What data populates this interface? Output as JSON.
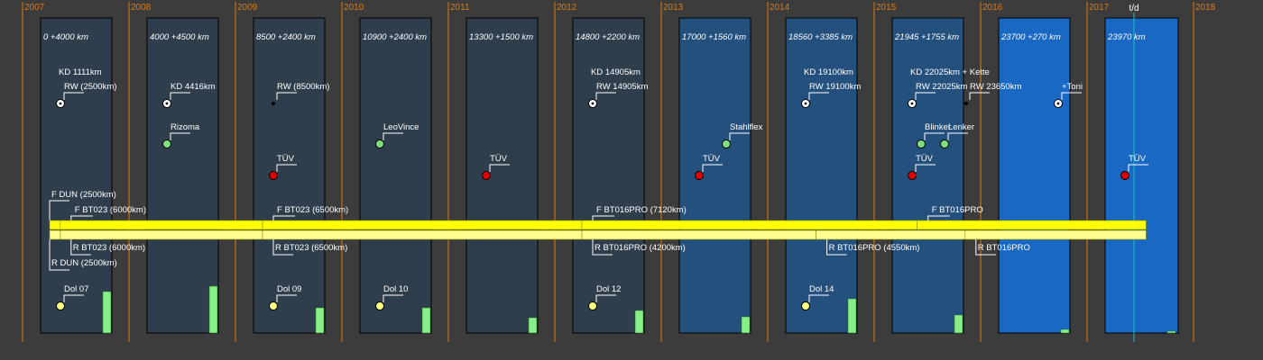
{
  "colors": {
    "background": "#3c3c3c",
    "year_line": "#e07a10",
    "year_text": "#e07a10",
    "panel_dark": "#2f3e4c",
    "panel_mid": "#24507e",
    "panel_bright": "#1868c4",
    "panel_border": "#000000",
    "tire_front": "#ffff00",
    "tire_rear": "#ffff90",
    "tire_border": "#8a8a00",
    "green_bar": "#88ee88",
    "dot_white": "#ffffff",
    "dot_green": "#80e080",
    "dot_red": "#e00000",
    "dot_yellow": "#ffff80",
    "today_line": "#20c0c0",
    "label_text": "#ffffff"
  },
  "years": [
    "2007",
    "2008",
    "2009",
    "2010",
    "2011",
    "2012",
    "2013",
    "2014",
    "2015",
    "2016",
    "2017",
    "2018"
  ],
  "today_label": "t/d",
  "panels": [
    {
      "label": "0 +4000 km",
      "shade": "dark",
      "bar_level": 0.38
    },
    {
      "label": "4000 +4500 km",
      "shade": "dark",
      "bar_level": 0.43
    },
    {
      "label": "8500 +2400 km",
      "shade": "dark",
      "bar_level": 0.23
    },
    {
      "label": "10900 +2400 km",
      "shade": "dark",
      "bar_level": 0.23
    },
    {
      "label": "13300 +1500 km",
      "shade": "dark",
      "bar_level": 0.14
    },
    {
      "label": "14800 +2200 km",
      "shade": "dark",
      "bar_level": 0.21
    },
    {
      "label": "17000 +1560 km",
      "shade": "mid",
      "bar_level": 0.15
    },
    {
      "label": "18560 +3385 km",
      "shade": "mid",
      "bar_level": 0.32
    },
    {
      "label": "21945 +1755 km",
      "shade": "mid",
      "bar_level": 0.17
    },
    {
      "label": "23700 +270 km",
      "shade": "bright",
      "bar_level": 0.03
    },
    {
      "label": "23970 km",
      "shade": "bright",
      "bar_level": 0.01
    }
  ],
  "events": [
    {
      "text": "KD 1111km",
      "col": 0,
      "row": "kd",
      "dot": "none"
    },
    {
      "text": "RW (2500km)",
      "col": 0,
      "row": "rw",
      "dot": "white"
    },
    {
      "text": "KD 4416km",
      "col": 1,
      "row": "rw",
      "dot": "white"
    },
    {
      "text": "RW (8500km)",
      "col": 2,
      "row": "rw",
      "dot": "small"
    },
    {
      "text": "KD 14905km",
      "col": 5,
      "row": "kd",
      "dot": "none"
    },
    {
      "text": "RW 14905km",
      "col": 5,
      "row": "rw",
      "dot": "white"
    },
    {
      "text": "KD 19100km",
      "col": 7,
      "row": "kd",
      "dot": "none"
    },
    {
      "text": "RW 19100km",
      "col": 7,
      "row": "rw",
      "dot": "white"
    },
    {
      "text": "KD 22025km + Kette",
      "col": 8,
      "row": "kd",
      "dot": "none"
    },
    {
      "text": "RW 22025km",
      "col": 8,
      "row": "rw",
      "dot": "white"
    },
    {
      "text": "RW 23650km",
      "col": 8,
      "row": "rw",
      "dot": "small",
      "xoff": 60
    },
    {
      "text": "+Toni",
      "col": 9,
      "row": "rw",
      "dot": "white",
      "xoff": 44
    },
    {
      "text": "Rizoma",
      "col": 1,
      "row": "parts",
      "dot": "green"
    },
    {
      "text": "LeoVince",
      "col": 3,
      "row": "parts",
      "dot": "green"
    },
    {
      "text": "Stahlflex",
      "col": 6,
      "row": "parts",
      "dot": "green",
      "xoff": 30
    },
    {
      "text": "Blinker",
      "col": 8,
      "row": "parts",
      "dot": "green",
      "xoff": 10
    },
    {
      "text": "Lenker",
      "col": 8,
      "row": "parts",
      "dot": "green",
      "xoff": 36
    },
    {
      "text": "TÜV",
      "col": 2,
      "row": "tuv",
      "dot": "red"
    },
    {
      "text": "TÜV",
      "col": 4,
      "row": "tuv",
      "dot": "red"
    },
    {
      "text": "TÜV",
      "col": 6,
      "row": "tuv",
      "dot": "red"
    },
    {
      "text": "TÜV",
      "col": 8,
      "row": "tuv",
      "dot": "red"
    },
    {
      "text": "TÜV",
      "col": 10,
      "row": "tuv",
      "dot": "red"
    },
    {
      "text": "Dol 07",
      "col": 0,
      "row": "dol",
      "dot": "yellow"
    },
    {
      "text": "Dol 09",
      "col": 2,
      "row": "dol",
      "dot": "yellow"
    },
    {
      "text": "Dol 10",
      "col": 3,
      "row": "dol",
      "dot": "yellow"
    },
    {
      "text": "Dol 12",
      "col": 5,
      "row": "dol",
      "dot": "yellow"
    },
    {
      "text": "Dol 14",
      "col": 7,
      "row": "dol",
      "dot": "yellow"
    }
  ],
  "tires_front": [
    {
      "label": "F DUN (2500km)",
      "start": 0.0,
      "end": 0.1,
      "label_row": 0
    },
    {
      "label": "F BT023 (6000km)",
      "start": 0.1,
      "end": 2.0,
      "label_row": 1
    },
    {
      "label": "F BT023 (6500km)",
      "start": 2.0,
      "end": 5.0,
      "label_row": 1
    },
    {
      "label": "F BT016PRO (7120km)",
      "start": 5.0,
      "end": 8.15,
      "label_row": 1
    },
    {
      "label": "F BT016PRO",
      "start": 8.15,
      "end": 10.3,
      "label_row": 1
    }
  ],
  "tires_rear": [
    {
      "label": "R BT023 (6000km)",
      "start": 0.1,
      "end": 2.0,
      "label_row": 0
    },
    {
      "label": "R DUN (2500km)",
      "start": 0.0,
      "end": 0.1,
      "label_row": 1
    },
    {
      "label": "R BT023 (6500km)",
      "start": 2.0,
      "end": 5.0,
      "label_row": 0
    },
    {
      "label": "R BT016PRO (4200km)",
      "start": 5.0,
      "end": 7.2,
      "label_row": 0
    },
    {
      "label": "R BT016PRO (4550km)",
      "start": 7.2,
      "end": 8.6,
      "label_row": 0
    },
    {
      "label": "R BT016PRO",
      "start": 8.6,
      "end": 10.3,
      "label_row": 0
    }
  ]
}
